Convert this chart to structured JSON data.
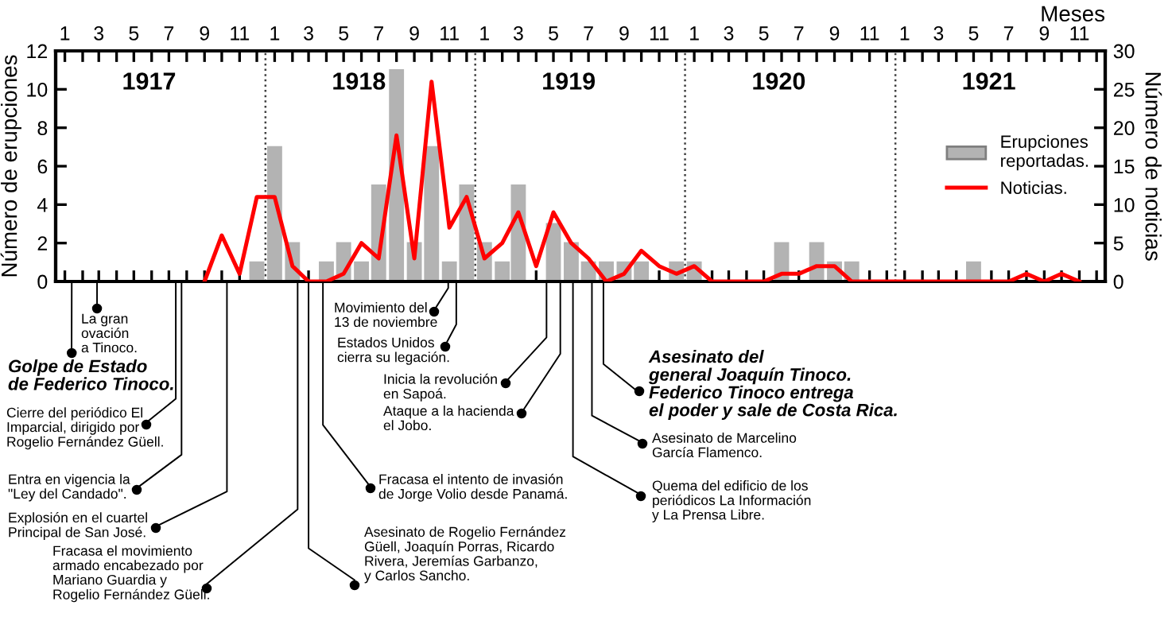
{
  "chart_data": {
    "type": "bar",
    "xlabel": "Meses",
    "ylabel": "Número de erupciones",
    "y2label": "Número de noticias",
    "xlim": [
      "1916-12-16",
      "1921-12-16"
    ],
    "xticks": [
      {
        "value": "1917-01",
        "label": "1"
      },
      {
        "value": "1917-02",
        "label": null
      },
      {
        "value": "1917-03",
        "label": "3"
      },
      {
        "value": "1917-04",
        "label": null
      },
      {
        "value": "1917-05",
        "label": "5"
      },
      {
        "value": "1917-06",
        "label": null
      },
      {
        "value": "1917-07",
        "label": "7"
      },
      {
        "value": "1917-08",
        "label": null
      },
      {
        "value": "1917-09",
        "label": "9"
      },
      {
        "value": "1917-10",
        "label": null
      },
      {
        "value": "1917-11",
        "label": "11"
      },
      {
        "value": "1917-12",
        "label": null
      },
      {
        "value": "1918-01",
        "label": "1"
      },
      {
        "value": "1918-02",
        "label": null
      },
      {
        "value": "1918-03",
        "label": "3"
      },
      {
        "value": "1918-04",
        "label": null
      },
      {
        "value": "1918-05",
        "label": "5"
      },
      {
        "value": "1918-06",
        "label": null
      },
      {
        "value": "1918-07",
        "label": "7"
      },
      {
        "value": "1918-08",
        "label": null
      },
      {
        "value": "1918-09",
        "label": "9"
      },
      {
        "value": "1918-10",
        "label": null
      },
      {
        "value": "1918-11",
        "label": "11"
      },
      {
        "value": "1918-12",
        "label": null
      },
      {
        "value": "1919-01",
        "label": "1"
      },
      {
        "value": "1919-02",
        "label": null
      },
      {
        "value": "1919-03",
        "label": "3"
      },
      {
        "value": "1919-04",
        "label": null
      },
      {
        "value": "1919-05",
        "label": "5"
      },
      {
        "value": "1919-06",
        "label": null
      },
      {
        "value": "1919-07",
        "label": "7"
      },
      {
        "value": "1919-08",
        "label": null
      },
      {
        "value": "1919-09",
        "label": "9"
      },
      {
        "value": "1919-10",
        "label": null
      },
      {
        "value": "1919-11",
        "label": "11"
      },
      {
        "value": "1919-12",
        "label": null
      },
      {
        "value": "1920-01",
        "label": "1"
      },
      {
        "value": "1920-02",
        "label": null
      },
      {
        "value": "1920-03",
        "label": "3"
      },
      {
        "value": "1920-04",
        "label": null
      },
      {
        "value": "1920-05",
        "label": "5"
      },
      {
        "value": "1920-06",
        "label": null
      },
      {
        "value": "1920-07",
        "label": "7"
      },
      {
        "value": "1920-08",
        "label": null
      },
      {
        "value": "1920-09",
        "label": "9"
      },
      {
        "value": "1920-10",
        "label": null
      },
      {
        "value": "1920-11",
        "label": "11"
      },
      {
        "value": "1920-12",
        "label": null
      },
      {
        "value": "1921-01",
        "label": "1"
      },
      {
        "value": "1921-02",
        "label": null
      },
      {
        "value": "1921-03",
        "label": "3"
      },
      {
        "value": "1921-04",
        "label": null
      },
      {
        "value": "1921-05",
        "label": "5"
      },
      {
        "value": "1921-06",
        "label": null
      },
      {
        "value": "1921-07",
        "label": "7"
      },
      {
        "value": "1921-08",
        "label": null
      },
      {
        "value": "1921-09",
        "label": "9"
      },
      {
        "value": "1921-10",
        "label": null
      },
      {
        "value": "1921-11",
        "label": "11"
      },
      {
        "value": "1921-12",
        "label": null
      }
    ],
    "ylim": [
      0,
      12
    ],
    "yticks": [
      0,
      2,
      4,
      6,
      8,
      10,
      12
    ],
    "y2lim": [
      0,
      30
    ],
    "y2ticks": [
      0,
      5,
      10,
      15,
      20,
      25,
      30
    ],
    "legend": "right",
    "grid": false,
    "series": [
      {
        "name": "Erupciones\nreportadas.",
        "type": "bar",
        "color": "#b3b3b3",
        "x": [
          "1917-01",
          "1917-02",
          "1917-03",
          "1917-04",
          "1917-05",
          "1917-06",
          "1917-07",
          "1917-08",
          "1917-09",
          "1917-10",
          "1917-11",
          "1917-12",
          "1918-01",
          "1918-02",
          "1918-03",
          "1918-04",
          "1918-05",
          "1918-06",
          "1918-07",
          "1918-08",
          "1918-09",
          "1918-10",
          "1918-11",
          "1918-12",
          "1919-01",
          "1919-02",
          "1919-03",
          "1919-04",
          "1919-05",
          "1919-06",
          "1919-07",
          "1919-08",
          "1919-09",
          "1919-10",
          "1919-11",
          "1919-12",
          "1920-01",
          "1920-02",
          "1920-03",
          "1920-04",
          "1920-05",
          "1920-06",
          "1920-07",
          "1920-08",
          "1920-09",
          "1920-10",
          "1920-11",
          "1920-12",
          "1921-01",
          "1921-02",
          "1921-03",
          "1921-04",
          "1921-05",
          "1921-06",
          "1921-07",
          "1921-08",
          "1921-09",
          "1921-10",
          "1921-11",
          "1921-12"
        ],
        "values": [
          0,
          0,
          0,
          0,
          0,
          0,
          0,
          0,
          0,
          0,
          0,
          1,
          7,
          2,
          0,
          1,
          2,
          1,
          5,
          11,
          2,
          7,
          1,
          5,
          2,
          1,
          5,
          0,
          3,
          2,
          1,
          1,
          1,
          1,
          0,
          1,
          1,
          0,
          0,
          0,
          0,
          2,
          0,
          2,
          1,
          1,
          0,
          0,
          0,
          0,
          0,
          0,
          1,
          0,
          0,
          0,
          0,
          0,
          0,
          0
        ]
      },
      {
        "name": "Noticias.",
        "type": "line",
        "axis": "y2",
        "color": "#ff0000",
        "x": [
          "1917-09",
          "1917-10",
          "1917-11",
          "1917-12",
          "1918-01",
          "1918-02",
          "1918-03",
          "1918-04",
          "1918-05",
          "1918-06",
          "1918-07",
          "1918-08",
          "1918-09",
          "1918-10",
          "1918-11",
          "1918-12",
          "1919-01",
          "1919-02",
          "1919-03",
          "1919-04",
          "1919-05",
          "1919-06",
          "1919-07",
          "1919-08",
          "1919-09",
          "1919-10",
          "1919-11",
          "1919-12",
          "1920-01",
          "1920-02",
          "1920-03",
          "1920-04",
          "1920-05",
          "1920-06",
          "1920-07",
          "1920-08",
          "1920-09",
          "1920-10",
          "1920-11",
          "1920-12",
          "1921-01",
          "1921-02",
          "1921-03",
          "1921-04",
          "1921-05",
          "1921-06",
          "1921-07",
          "1921-08",
          "1921-09",
          "1921-10",
          "1921-11"
        ],
        "values": [
          0,
          6,
          1,
          11,
          11,
          2,
          0,
          0,
          1,
          5,
          3,
          19,
          3,
          26,
          7,
          11,
          3,
          5,
          9,
          2,
          9,
          5,
          3,
          0,
          1,
          4,
          2,
          1,
          2,
          0,
          0,
          0,
          0,
          1,
          1,
          2,
          2,
          0,
          0,
          0,
          0,
          0,
          0,
          0,
          0,
          0,
          0,
          1,
          0,
          1,
          0
        ]
      }
    ],
    "ref_lines": [
      {
        "axis": "x",
        "value": "1917-12-16",
        "line_style": "dotted",
        "color": "#404040"
      },
      {
        "axis": "x",
        "value": "1918-12-16",
        "line_style": "dotted",
        "color": "#404040"
      },
      {
        "axis": "x",
        "value": "1919-12-16",
        "line_style": "dotted",
        "color": "#404040"
      },
      {
        "axis": "x",
        "value": "1920-12-16",
        "line_style": "dotted",
        "color": "#404040"
      }
    ],
    "annotations": [
      "1917",
      "1918",
      "1919",
      "1920",
      "1921",
      {
        "text": "Golpe de Estado\nde Federico Tinoco.",
        "x": "1917-01-13",
        "y": 0
      },
      {
        "text": "La gran\novación\na Tinoco.",
        "x": "1917-02-26",
        "y": 0
      },
      {
        "text": "Cierre del periódico El\nImparcial, dirigido por\nRogelio Fernández Güell.",
        "x": "1917-07-13",
        "y": 0
      },
      {
        "text": "Entra en vigencia la\n\"Ley del Candado\".",
        "x": "1917-07-23",
        "y": 0
      },
      {
        "text": "Explosión en el cuartel\nPrincipal de San José.",
        "x": "1917-10-10",
        "y": 0
      },
      {
        "text": "Fracasa el movimiento\narmado encabezado por\nMariano Guardia y\nRogelio Fernández Güell.",
        "x": "1918-02-10",
        "y": 0
      },
      {
        "text": "Asesinato de Rogelio Fernández\nGüell, Joaquín Porras, Ricardo\nRivera, Jeremías Garbanzo,\ny Carlos Sancho.",
        "x": "1918-03-01",
        "y": 0
      },
      {
        "text": "Fracasa el intento de invasión\nde Jorge Volio desde Panamá.",
        "x": "1918-03-26",
        "y": 0
      },
      {
        "text": "Movimiento del\n13 de noviembre",
        "x": "1918-10-30",
        "y": 0
      },
      {
        "text": "Estados Unidos\ncierra su legación.",
        "x": "1918-11-13",
        "y": 0
      },
      {
        "text": "Inicia la revolución\nen Sapoá.",
        "x": "1919-04-19",
        "y": 0
      },
      {
        "text": "Ataque a la hacienda\nel Jobo.",
        "x": "1919-05-13",
        "y": 0
      },
      {
        "text": "Quema del edificio de los\nperiódicos La Información\ny La Prensa Libre.",
        "x": "1919-06-04",
        "y": 0
      },
      {
        "text": "Asesinato de Marcelino\nGarcía Flamenco.",
        "x": "1919-07-07",
        "y": 0
      },
      {
        "text": "Asesinato del\ngeneral Joaquín Tinoco.\nFederico Tinoco entrega\nel poder y sale de Costa Rica.",
        "x": "1919-07-27",
        "y": 0
      }
    ]
  }
}
